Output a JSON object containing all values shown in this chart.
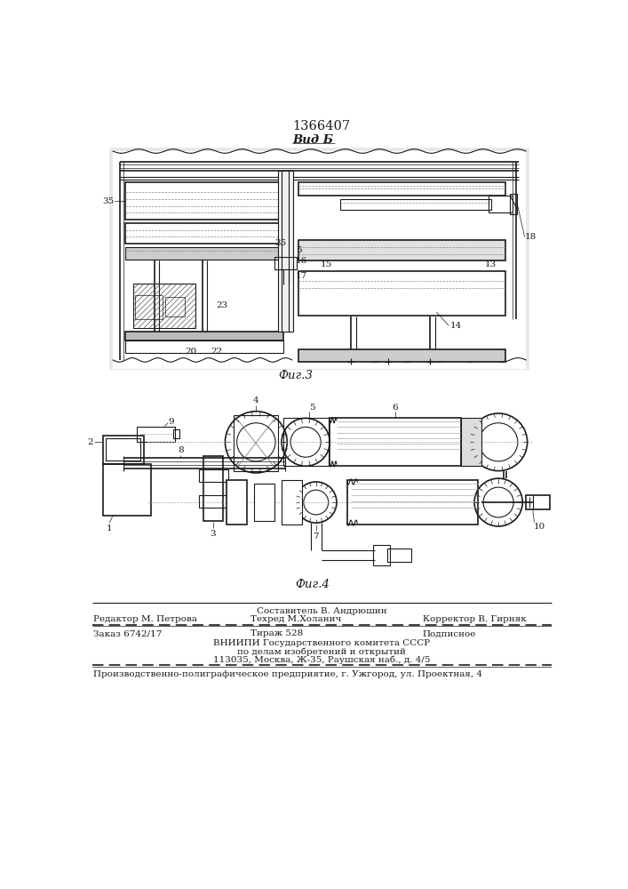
{
  "patent_number": "1366407",
  "fig3_label": "Фиг.3",
  "fig4_label": "Фиг.4",
  "vid_label": "Вид Б",
  "footer": {
    "line1_center": "Составитель В. Андрюшин",
    "line2_left": "Редактор М. Петрова",
    "line2_center": "Техред М.Холанич",
    "line2_right": "Корректор В. Гирняк",
    "line3_left": "Заказ 6742/17",
    "line3_center": "Тираж 528",
    "line3_right": "Подписное",
    "line4": "ВНИИПИ Государственного комитета СССР",
    "line5": "по делам изобретений и открытий",
    "line6": "113035, Москва, Ж-35, Раушская наб., д. 4/5",
    "line7": "Производственно-полиграфическое предприятие, г. Ужгород, ул. Проектная, 4"
  },
  "dc": "#1a1a1a",
  "lc": "#aaaaaa"
}
